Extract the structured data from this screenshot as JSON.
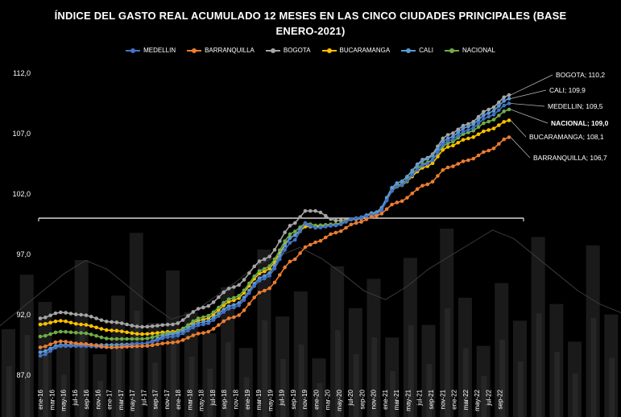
{
  "chart_data": {
    "type": "line",
    "title_line1": "ÍNDICE DEL GASTO REAL ACUMULADO 12 MESES EN LAS CINCO CIUDADES PRINCIPALES  (BASE",
    "title_line2": "ENERO-2021)",
    "ylim": [
      87.0,
      112.0
    ],
    "yticks": [
      "112,0",
      "107,0",
      "102,0",
      "97,0",
      "92,0",
      "87,0"
    ],
    "ytick_values": [
      112,
      107,
      102,
      97,
      92,
      87
    ],
    "xticks": [
      "ene-16",
      "mar-16",
      "may-16",
      "jul-16",
      "sep-16",
      "nov-16",
      "ene-17",
      "mar-17",
      "may-17",
      "jul-17",
      "sep-17",
      "nov-17",
      "ene-18",
      "mar-18",
      "may-18",
      "jul-18",
      "sep-18",
      "nov-18",
      "ene-19",
      "mar-19",
      "may-19",
      "jul-19",
      "sep-19",
      "nov-19",
      "ene-20",
      "mar-20",
      "may-20",
      "jul-20",
      "sep-20",
      "nov-20",
      "ene-21",
      "mar-21",
      "may-21",
      "jul-21",
      "sep-21",
      "nov-21",
      "ene-22",
      "mar-22",
      "may-22",
      "jul-22",
      "sep-22"
    ],
    "reference_line": 100.0,
    "series": [
      {
        "name": "MEDELLIN",
        "color": "#4472C4",
        "end_label": "MEDELLIN; 109,5",
        "bold": false,
        "anchors": [
          [
            0,
            88.6
          ],
          [
            4,
            89.4
          ],
          [
            8,
            89.4
          ],
          [
            14,
            89.3
          ],
          [
            20,
            89.6
          ],
          [
            26,
            90.2
          ],
          [
            32,
            91.2
          ],
          [
            38,
            92.6
          ],
          [
            44,
            95.0
          ],
          [
            50,
            98.2
          ],
          [
            52,
            99.6
          ],
          [
            54,
            99.2
          ],
          [
            58,
            99.4
          ],
          [
            62,
            100.0
          ],
          [
            66,
            100.3
          ],
          [
            70,
            102.6
          ],
          [
            76,
            104.5
          ],
          [
            80,
            106.4
          ],
          [
            84,
            107.3
          ],
          [
            88,
            108.4
          ],
          [
            92,
            109.5
          ]
        ]
      },
      {
        "name": "BARRANQUILLA",
        "color": "#ED7D31",
        "end_label": "BARRANQUILLA; 106,7",
        "bold": false,
        "anchors": [
          [
            0,
            89.3
          ],
          [
            4,
            89.8
          ],
          [
            8,
            89.6
          ],
          [
            14,
            89.3
          ],
          [
            20,
            89.4
          ],
          [
            26,
            89.7
          ],
          [
            32,
            90.5
          ],
          [
            38,
            91.8
          ],
          [
            44,
            94.0
          ],
          [
            50,
            96.6
          ],
          [
            52,
            97.6
          ],
          [
            54,
            98.0
          ],
          [
            58,
            98.8
          ],
          [
            62,
            99.6
          ],
          [
            66,
            100.2
          ],
          [
            70,
            101.3
          ],
          [
            76,
            102.8
          ],
          [
            80,
            104.2
          ],
          [
            84,
            104.8
          ],
          [
            88,
            105.6
          ],
          [
            92,
            106.7
          ]
        ]
      },
      {
        "name": "BOGOTA",
        "color": "#A5A5A5",
        "end_label": "BOGOTA; 110,2",
        "bold": false,
        "anchors": [
          [
            0,
            91.7
          ],
          [
            4,
            92.2
          ],
          [
            8,
            92.0
          ],
          [
            14,
            91.4
          ],
          [
            20,
            91.0
          ],
          [
            26,
            91.2
          ],
          [
            32,
            92.6
          ],
          [
            38,
            94.3
          ],
          [
            44,
            96.6
          ],
          [
            50,
            99.6
          ],
          [
            52,
            100.6
          ],
          [
            54,
            100.6
          ],
          [
            58,
            99.8
          ],
          [
            62,
            99.9
          ],
          [
            66,
            100.4
          ],
          [
            70,
            102.9
          ],
          [
            76,
            105.0
          ],
          [
            80,
            106.9
          ],
          [
            84,
            107.8
          ],
          [
            88,
            109.0
          ],
          [
            92,
            110.2
          ]
        ]
      },
      {
        "name": "BUCARAMANGA",
        "color": "#FFC000",
        "end_label": "BUCARAMANGA; 108,1",
        "bold": false,
        "anchors": [
          [
            0,
            91.2
          ],
          [
            4,
            91.5
          ],
          [
            8,
            91.2
          ],
          [
            14,
            90.7
          ],
          [
            20,
            90.4
          ],
          [
            26,
            90.6
          ],
          [
            32,
            91.6
          ],
          [
            38,
            93.2
          ],
          [
            44,
            95.6
          ],
          [
            50,
            98.6
          ],
          [
            52,
            99.3
          ],
          [
            54,
            99.3
          ],
          [
            58,
            99.5
          ],
          [
            62,
            100.0
          ],
          [
            66,
            100.4
          ],
          [
            70,
            102.6
          ],
          [
            76,
            104.3
          ],
          [
            80,
            105.9
          ],
          [
            84,
            106.6
          ],
          [
            88,
            107.3
          ],
          [
            92,
            108.1
          ]
        ]
      },
      {
        "name": "CALI",
        "color": "#5B9BD5",
        "end_label": "CALI; 109,9",
        "bold": false,
        "anchors": [
          [
            0,
            88.9
          ],
          [
            4,
            89.5
          ],
          [
            8,
            89.5
          ],
          [
            14,
            89.5
          ],
          [
            20,
            89.6
          ],
          [
            26,
            90.4
          ],
          [
            32,
            91.4
          ],
          [
            38,
            92.8
          ],
          [
            44,
            95.2
          ],
          [
            50,
            98.6
          ],
          [
            52,
            99.5
          ],
          [
            54,
            99.2
          ],
          [
            58,
            99.4
          ],
          [
            62,
            100.0
          ],
          [
            66,
            100.5
          ],
          [
            70,
            102.9
          ],
          [
            76,
            104.9
          ],
          [
            80,
            106.6
          ],
          [
            84,
            107.6
          ],
          [
            88,
            108.7
          ],
          [
            92,
            109.9
          ]
        ]
      },
      {
        "name": "NACIONAL",
        "color": "#70AD47",
        "end_label": "NACIONAL; 109,0",
        "bold": true,
        "anchors": [
          [
            0,
            90.2
          ],
          [
            4,
            90.6
          ],
          [
            8,
            90.5
          ],
          [
            14,
            90.0
          ],
          [
            20,
            90.0
          ],
          [
            26,
            90.5
          ],
          [
            32,
            91.8
          ],
          [
            38,
            93.4
          ],
          [
            44,
            95.8
          ],
          [
            50,
            98.9
          ],
          [
            52,
            99.6
          ],
          [
            54,
            99.4
          ],
          [
            58,
            99.5
          ],
          [
            62,
            100.0
          ],
          [
            66,
            100.4
          ],
          [
            70,
            102.7
          ],
          [
            76,
            104.6
          ],
          [
            80,
            106.2
          ],
          [
            84,
            107.1
          ],
          [
            88,
            108.0
          ],
          [
            92,
            109.0
          ]
        ]
      }
    ],
    "legend": [
      "MEDELLIN",
      "BARRANQUILLA",
      "BOGOTA",
      "BUCARAMANGA",
      "CALI",
      "NACIONAL"
    ]
  },
  "background_bars": [
    0.42,
    0.68,
    0.55,
    0.35,
    0.75,
    0.3,
    0.58,
    0.88,
    0.45,
    0.7,
    0.5,
    0.4,
    0.62,
    0.33,
    0.8,
    0.48,
    0.6,
    0.28,
    0.72,
    0.52,
    0.66,
    0.38,
    0.76,
    0.44,
    0.9,
    0.57,
    0.34,
    0.64,
    0.46,
    0.86,
    0.54,
    0.36,
    0.82,
    0.49
  ],
  "background_line": [
    0.42,
    0.5,
    0.58,
    0.66,
    0.72,
    0.68,
    0.6,
    0.52,
    0.45,
    0.48,
    0.55,
    0.62,
    0.7,
    0.74,
    0.78,
    0.73,
    0.66,
    0.58,
    0.54,
    0.6,
    0.68,
    0.74,
    0.8,
    0.86,
    0.82,
    0.74,
    0.66,
    0.58,
    0.52,
    0.48
  ]
}
